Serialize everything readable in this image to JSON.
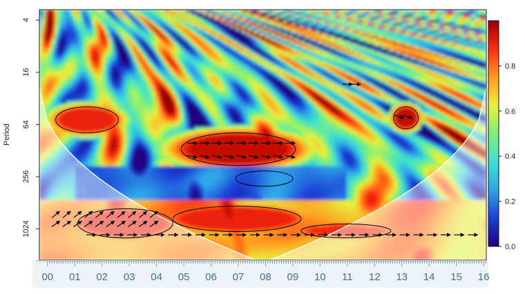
{
  "chart_data": {
    "type": "heatmap",
    "title": "",
    "ylabel": "Period",
    "xlabel": "",
    "y_scale": "log2",
    "y_inverted": true,
    "y_ticks": [
      4,
      16,
      64,
      256,
      1024
    ],
    "y_tick_labels": [
      "4",
      "16",
      "64",
      "256",
      "1024"
    ],
    "x_tick_labels": [
      "00",
      "01",
      "02",
      "03",
      "04",
      "05",
      "06",
      "07",
      "08",
      "09",
      "10",
      "11",
      "12",
      "13",
      "14",
      "15",
      "16"
    ],
    "colorbar": {
      "range": [
        0,
        1
      ],
      "ticks": [
        0.0,
        0.2,
        0.4,
        0.6,
        0.8
      ],
      "tick_labels": [
        "0.0",
        "0.2",
        "0.4",
        "0.6",
        "0.8"
      ],
      "colors": [
        "#20007f",
        "#1a3fd6",
        "#2fa6e8",
        "#3de0d0",
        "#7ef07a",
        "#e8f03a",
        "#ff9a1f",
        "#ff2a10",
        "#9a0000"
      ]
    },
    "high_coherence_regions": [
      {
        "x_start": 4.9,
        "x_end": 9.1,
        "period_low": 80,
        "period_high": 190,
        "value": 0.95
      },
      {
        "x_start": 1.1,
        "x_end": 4.6,
        "period_low": 600,
        "period_high": 1300,
        "value": 0.9
      },
      {
        "x_start": 4.6,
        "x_end": 9.3,
        "period_low": 560,
        "period_high": 1100,
        "value": 0.9
      },
      {
        "x_start": 9.3,
        "x_end": 12.6,
        "period_low": 900,
        "period_high": 1300,
        "value": 0.88
      },
      {
        "x_start": 12.7,
        "x_end": 13.6,
        "period_low": 40,
        "period_high": 72,
        "value": 0.95
      },
      {
        "x_start": 0.3,
        "x_end": 2.6,
        "period_low": 40,
        "period_high": 80,
        "value": 0.9
      },
      {
        "x_start": 6.9,
        "x_end": 9.0,
        "period_low": 220,
        "period_high": 330,
        "value": 0.85
      }
    ],
    "cone_of_influence": true,
    "phase_arrows": true,
    "contour_significance": true
  }
}
